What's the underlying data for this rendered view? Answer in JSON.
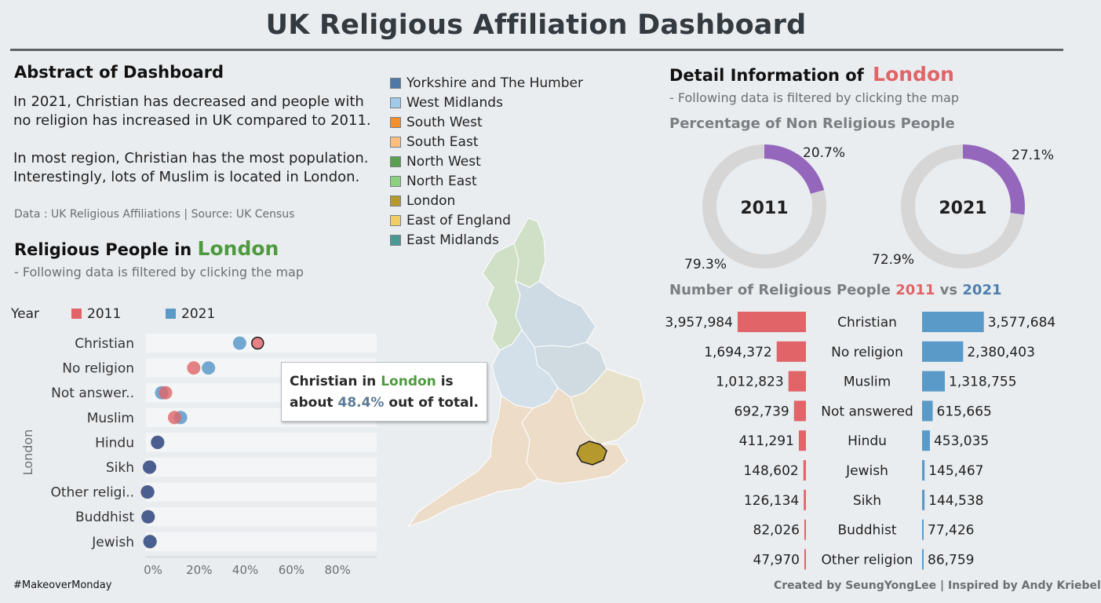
{
  "title": "UK Religious Affiliation Dashboard",
  "abstract": {
    "heading": "Abstract of Dashboard",
    "line1": "In 2021, Christian has decreased  and people with",
    "line2": "no religion has increased in UK compared to 2011.",
    "line3": "In most region, Christian has the most population.",
    "line4": "Interestingly, lots of Muslim is located in London.",
    "source": "Data : UK Religious Affiliations  | Source: UK Census"
  },
  "religious_people": {
    "heading_prefix": "Religious People in",
    "region": "London",
    "note": "- Following data is filtered by clicking the map",
    "legend_title": "Year",
    "legend_2011": "2011",
    "legend_2021": "2021",
    "axis_label": "London"
  },
  "tooltip": {
    "t1": "Christian in",
    "region": "London",
    "t2": "is",
    "t3": "about",
    "pct": "48.4%",
    "t4": "out of total."
  },
  "region_legend": [
    {
      "label": "Yorkshire and The Humber",
      "color": "#4e79a7"
    },
    {
      "label": "West Midlands",
      "color": "#a0cbe8"
    },
    {
      "label": "South West",
      "color": "#f28e2b"
    },
    {
      "label": "South East",
      "color": "#ffbe7d"
    },
    {
      "label": "North West",
      "color": "#59a14f"
    },
    {
      "label": "North East",
      "color": "#8cd17d"
    },
    {
      "label": "London",
      "color": "#b6992d"
    },
    {
      "label": "East of England",
      "color": "#f1ce63"
    },
    {
      "label": "East Midlands",
      "color": "#499894"
    }
  ],
  "detail": {
    "heading_prefix": "Detail Information of",
    "region": "London",
    "note": "- Following data is filtered by clicking the map",
    "pct_heading": "Percentage of Non Religious People",
    "donut_2011": {
      "year": "2011",
      "non_religious_pct": 20.7,
      "label_non": "20.7%",
      "label_rel": "79.3%"
    },
    "donut_2021": {
      "year": "2021",
      "non_religious_pct": 27.1,
      "label_non": "27.1%",
      "label_rel": "72.9%"
    },
    "bar_heading_prefix": "Number of Religious People",
    "bar_heading_2011": "2011",
    "bar_heading_vs": "vs",
    "bar_heading_2021": "2021"
  },
  "footer": {
    "left": "#MakeoverMonday",
    "right": "Created by SeungYongLee | Inspired by Andy Kriebel"
  },
  "colors": {
    "red_2011": "#e06468",
    "blue_2021": "#5a9ac9",
    "purple": "#9467bd",
    "donut_track": "#d6d6d6",
    "london": "#b6992d"
  },
  "chart_data": [
    {
      "type": "scatter",
      "title": "Religious People in London",
      "categories": [
        "Christian",
        "No religion",
        "Not answer..",
        "Muslim",
        "Hindu",
        "Sikh",
        "Other religi..",
        "Buddhist",
        "Jewish"
      ],
      "series": [
        {
          "name": "2011",
          "values": [
            48.4,
            20.7,
            8.5,
            12.4,
            5.0,
            1.5,
            0.6,
            1.0,
            1.8
          ]
        },
        {
          "name": "2021",
          "values": [
            40.6,
            27.1,
            6.8,
            15.0,
            5.1,
            1.6,
            0.8,
            0.9,
            1.7
          ]
        }
      ],
      "x_ticks": [
        "0%",
        "20%",
        "40%",
        "60%",
        "80%"
      ],
      "xlim": [
        0,
        100
      ]
    },
    {
      "type": "pie",
      "title": "2011",
      "slices": [
        {
          "label": "20.7%",
          "value": 20.7
        },
        {
          "label": "79.3%",
          "value": 79.3
        }
      ]
    },
    {
      "type": "pie",
      "title": "2021",
      "slices": [
        {
          "label": "27.1%",
          "value": 27.1
        },
        {
          "label": "72.9%",
          "value": 72.9
        }
      ]
    },
    {
      "type": "bar",
      "title": "Number of Religious People 2011 vs 2021",
      "categories": [
        "Christian",
        "No religion",
        "Muslim",
        "Not answered",
        "Hindu",
        "Jewish",
        "Sikh",
        "Buddhist",
        "Other religion"
      ],
      "series": [
        {
          "name": "2011",
          "values": [
            3957984,
            1694372,
            1012823,
            692739,
            411291,
            148602,
            126134,
            82026,
            47970
          ],
          "labels": [
            "3,957,984",
            "1,694,372",
            "1,012,823",
            "692,739",
            "411,291",
            "148,602",
            "126,134",
            "82,026",
            "47,970"
          ]
        },
        {
          "name": "2021",
          "values": [
            3577684,
            2380403,
            1318755,
            615665,
            453035,
            145467,
            144538,
            77426,
            86759
          ],
          "labels": [
            "3,577,684",
            "2,380,403",
            "1,318,755",
            "615,665",
            "453,035",
            "145,467",
            "144,538",
            "77,426",
            "86,759"
          ]
        }
      ]
    }
  ]
}
